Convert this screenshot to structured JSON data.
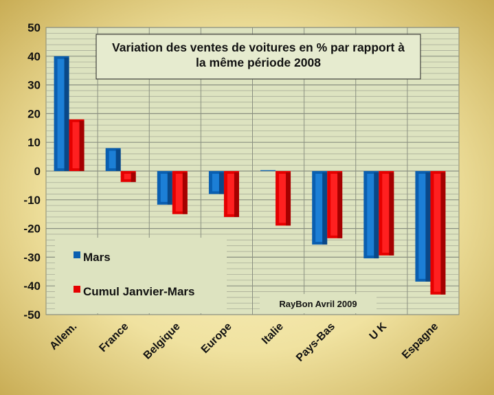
{
  "chart_data": {
    "type": "bar",
    "title": "Variation des ventes de voitures en % par rapport à la même période 2008",
    "title_lines": [
      "Variation des ventes de voitures en % par rapport à",
      "la même période 2008"
    ],
    "categories": [
      "Allem.",
      "France",
      "Belgique",
      "Europe",
      "Italie",
      "Pays-Bas",
      "U K",
      "Espagne"
    ],
    "series": [
      {
        "name": "Mars",
        "color": "#0a5fb0",
        "values": [
          40,
          8,
          -11.7,
          -8,
          0.3,
          -25.6,
          -30.4,
          -38.5
        ]
      },
      {
        "name": "Cumul  Janvier-Mars",
        "color": "#e50000",
        "values": [
          18,
          -3.8,
          -15,
          -16,
          -19,
          -23.4,
          -29.4,
          -43
        ]
      }
    ],
    "ylim": [
      -50,
      50
    ],
    "yticks": [
      50,
      40,
      30,
      20,
      10,
      0,
      -10,
      -20,
      -30,
      -40,
      -50
    ],
    "grid": true,
    "legend_position": "bottom-left",
    "annotation": "RayBon Avril  2009",
    "xlabel": "",
    "ylabel": ""
  }
}
